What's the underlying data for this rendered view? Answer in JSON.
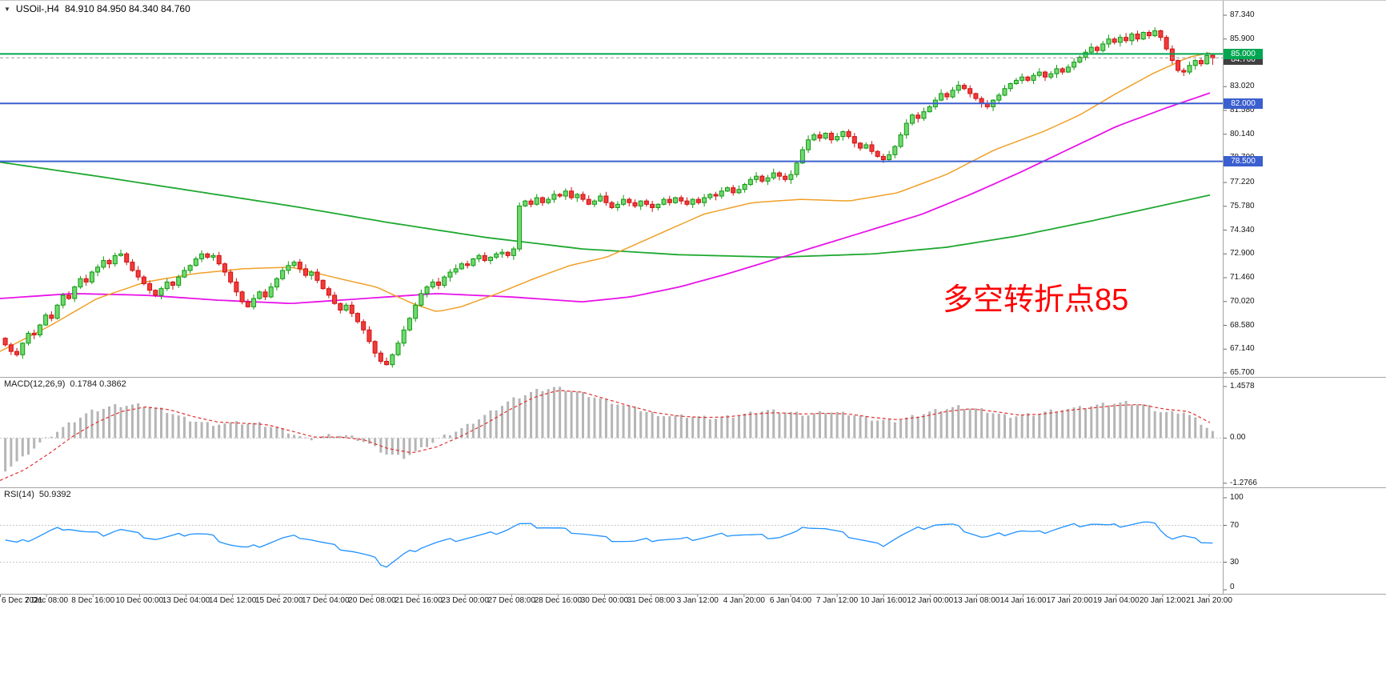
{
  "window": {
    "title_symbol": "USOil-,H4",
    "title_ohlc": "84.910 84.950 84.340 84.760"
  },
  "icons": {
    "dropdown": "▼"
  },
  "annotation": {
    "text": "多空转折点85",
    "color": "#FF0000"
  },
  "panels": {
    "macd": {
      "name": "MACD(12,26,9)",
      "values": "0.1784 0.3862",
      "axis": [
        "1.4578",
        "0.00",
        "-1.2766"
      ]
    },
    "rsi": {
      "name": "RSI(14)",
      "values": "50.9392",
      "axis": [
        "100",
        "70",
        "30",
        "0"
      ]
    }
  },
  "price_axis": [
    "87.340",
    "85.900",
    "84.460",
    "83.020",
    "81.580",
    "80.140",
    "78.700",
    "77.220",
    "75.780",
    "74.340",
    "72.900",
    "71.460",
    "70.020",
    "68.580",
    "67.140",
    "65.700"
  ],
  "time_axis": [
    "6 Dec 2021",
    "7 Dec 08:00",
    "8 Dec 16:00",
    "10 Dec 00:00",
    "13 Dec 04:00",
    "14 Dec 12:00",
    "15 Dec 20:00",
    "17 Dec 04:00",
    "20 Dec 08:00",
    "21 Dec 16:00",
    "23 Dec 00:00",
    "27 Dec 08:00",
    "28 Dec 16:00",
    "30 Dec 00:00",
    "31 Dec 08:00",
    "3 Jan 12:00",
    "4 Jan 20:00",
    "6 Jan 04:00",
    "7 Jan 12:00",
    "10 Jan 16:00",
    "12 Jan 00:00",
    "13 Jan 08:00",
    "14 Jan 16:00",
    "17 Jan 20:00",
    "19 Jan 04:00",
    "20 Jan 12:00",
    "21 Jan 20:00"
  ],
  "hlines": [
    {
      "price": 85.0,
      "label": "85.000",
      "color": "#00A651"
    },
    {
      "price": 82.0,
      "label": "82.000",
      "color": "#3A5FCF"
    },
    {
      "price": 78.5,
      "label": "78.500",
      "color": "#3A5FCF"
    }
  ],
  "current_price": {
    "price": 84.76,
    "label": "84.760"
  },
  "colors": {
    "bull_fill": "#6FD96F",
    "bull_stroke": "#129612",
    "bear_fill": "#F23B3B",
    "bear_stroke": "#CE1010",
    "ma_slow": "#1FA831",
    "ma_mid": "#E813E8",
    "ma_fast": "#F0A028",
    "macd_hist": "#B5B5B5",
    "macd_signal": "#E03030",
    "rsi_line": "#1E90FF",
    "badge_current": "#404040",
    "level_dash": "#C8C8C8",
    "current_line": "#9A9A9A"
  },
  "chart_data": {
    "type": "candlestick",
    "symbol": "USOil-",
    "timeframe": "H4",
    "price_range": [
      65.7,
      87.34
    ],
    "last_bar": {
      "open": 84.91,
      "high": 84.95,
      "low": 84.34,
      "close": 84.76
    },
    "closes": [
      67.4,
      67.0,
      66.8,
      67.5,
      68.1,
      68.0,
      68.6,
      69.2,
      69.0,
      69.8,
      70.4,
      70.2,
      70.9,
      71.4,
      71.2,
      71.8,
      72.1,
      72.5,
      72.3,
      72.8,
      72.9,
      72.4,
      71.9,
      71.5,
      71.1,
      70.7,
      70.4,
      70.8,
      71.2,
      71.0,
      71.5,
      71.9,
      72.2,
      72.6,
      72.9,
      72.7,
      72.8,
      72.3,
      71.8,
      71.2,
      70.6,
      70.0,
      69.7,
      70.2,
      70.6,
      70.3,
      70.9,
      71.4,
      71.9,
      72.2,
      72.4,
      72.0,
      71.6,
      71.8,
      71.3,
      70.8,
      70.4,
      69.9,
      69.5,
      69.8,
      69.3,
      68.8,
      68.3,
      67.6,
      66.9,
      66.4,
      66.2,
      66.8,
      67.5,
      68.3,
      69.0,
      69.8,
      70.5,
      70.9,
      71.2,
      71.0,
      71.5,
      71.8,
      72.0,
      72.3,
      72.2,
      72.6,
      72.8,
      72.5,
      72.7,
      72.9,
      73.0,
      72.8,
      73.2,
      75.8,
      76.1,
      75.9,
      76.3,
      76.0,
      76.2,
      76.5,
      76.4,
      76.7,
      76.3,
      76.5,
      76.2,
      75.9,
      76.1,
      76.4,
      76.0,
      75.7,
      75.9,
      76.2,
      76.0,
      75.8,
      76.1,
      75.9,
      75.7,
      75.9,
      76.2,
      76.0,
      76.3,
      76.1,
      75.9,
      76.2,
      76.0,
      76.3,
      76.5,
      76.4,
      76.7,
      76.9,
      76.6,
      76.8,
      77.1,
      77.4,
      77.6,
      77.3,
      77.5,
      77.8,
      77.6,
      77.4,
      77.7,
      78.4,
      79.2,
      79.8,
      80.1,
      79.9,
      80.2,
      79.8,
      80.0,
      80.3,
      80.0,
      79.6,
      79.3,
      79.5,
      79.1,
      78.8,
      78.6,
      78.9,
      79.4,
      80.1,
      80.8,
      81.3,
      81.1,
      81.5,
      81.8,
      82.2,
      82.6,
      82.4,
      82.8,
      83.1,
      82.9,
      82.6,
      82.3,
      82.0,
      81.8,
      82.2,
      82.5,
      82.9,
      83.2,
      83.4,
      83.6,
      83.4,
      83.7,
      83.9,
      83.6,
      83.8,
      84.1,
      83.9,
      84.2,
      84.5,
      84.8,
      85.1,
      85.4,
      85.2,
      85.6,
      85.9,
      85.7,
      86.0,
      85.8,
      86.2,
      85.9,
      86.3,
      86.1,
      86.4,
      86.0,
      85.3,
      84.6,
      84.0,
      83.9,
      84.3,
      84.6,
      84.4,
      84.9,
      84.76
    ],
    "ma_slow_green": [
      [
        0,
        78.45
      ],
      [
        0.08,
        77.6
      ],
      [
        0.16,
        76.7
      ],
      [
        0.24,
        75.8
      ],
      [
        0.32,
        74.8
      ],
      [
        0.4,
        73.9
      ],
      [
        0.48,
        73.2
      ],
      [
        0.56,
        72.85
      ],
      [
        0.64,
        72.7
      ],
      [
        0.72,
        72.9
      ],
      [
        0.78,
        73.3
      ],
      [
        0.84,
        74.0
      ],
      [
        0.9,
        74.9
      ],
      [
        0.95,
        75.7
      ],
      [
        1,
        76.5
      ]
    ],
    "ma_mid_magenta": [
      [
        0,
        70.2
      ],
      [
        0.06,
        70.5
      ],
      [
        0.12,
        70.4
      ],
      [
        0.18,
        70.1
      ],
      [
        0.24,
        69.9
      ],
      [
        0.3,
        70.2
      ],
      [
        0.36,
        70.5
      ],
      [
        0.42,
        70.3
      ],
      [
        0.48,
        70.0
      ],
      [
        0.52,
        70.3
      ],
      [
        0.56,
        70.9
      ],
      [
        0.6,
        71.7
      ],
      [
        0.64,
        72.6
      ],
      [
        0.68,
        73.5
      ],
      [
        0.72,
        74.4
      ],
      [
        0.76,
        75.3
      ],
      [
        0.8,
        76.5
      ],
      [
        0.84,
        77.8
      ],
      [
        0.88,
        79.2
      ],
      [
        0.92,
        80.6
      ],
      [
        0.96,
        81.7
      ],
      [
        1,
        82.7
      ]
    ],
    "ma_fast_orange": [
      [
        0,
        67.0
      ],
      [
        0.04,
        68.5
      ],
      [
        0.08,
        70.2
      ],
      [
        0.12,
        71.2
      ],
      [
        0.16,
        71.7
      ],
      [
        0.2,
        72.0
      ],
      [
        0.24,
        72.1
      ],
      [
        0.28,
        71.4
      ],
      [
        0.31,
        70.9
      ],
      [
        0.34,
        69.9
      ],
      [
        0.36,
        69.4
      ],
      [
        0.38,
        69.7
      ],
      [
        0.41,
        70.5
      ],
      [
        0.44,
        71.4
      ],
      [
        0.47,
        72.2
      ],
      [
        0.5,
        72.7
      ],
      [
        0.54,
        74.0
      ],
      [
        0.58,
        75.3
      ],
      [
        0.62,
        76.0
      ],
      [
        0.66,
        76.2
      ],
      [
        0.7,
        76.1
      ],
      [
        0.74,
        76.6
      ],
      [
        0.78,
        77.7
      ],
      [
        0.82,
        79.2
      ],
      [
        0.86,
        80.3
      ],
      [
        0.89,
        81.3
      ],
      [
        0.92,
        82.6
      ],
      [
        0.95,
        83.8
      ],
      [
        0.98,
        84.8
      ],
      [
        1,
        85.1
      ]
    ],
    "macd_range": [
      -1.2766,
      1.4578
    ],
    "macd_line": [
      [
        0,
        -0.9
      ],
      [
        0.015,
        -0.55
      ],
      [
        0.03,
        -0.1
      ],
      [
        0.05,
        0.35
      ],
      [
        0.07,
        0.75
      ],
      [
        0.09,
        0.92
      ],
      [
        0.11,
        0.95
      ],
      [
        0.13,
        0.82
      ],
      [
        0.15,
        0.55
      ],
      [
        0.17,
        0.4
      ],
      [
        0.19,
        0.42
      ],
      [
        0.21,
        0.4
      ],
      [
        0.23,
        0.22
      ],
      [
        0.25,
        -0.05
      ],
      [
        0.27,
        0.08
      ],
      [
        0.285,
        0.05
      ],
      [
        0.3,
        -0.15
      ],
      [
        0.315,
        -0.45
      ],
      [
        0.33,
        -0.55
      ],
      [
        0.345,
        -0.3
      ],
      [
        0.36,
        0.0
      ],
      [
        0.38,
        0.3
      ],
      [
        0.4,
        0.7
      ],
      [
        0.42,
        1.1
      ],
      [
        0.44,
        1.35
      ],
      [
        0.455,
        1.44
      ],
      [
        0.47,
        1.35
      ],
      [
        0.49,
        1.15
      ],
      [
        0.51,
        0.95
      ],
      [
        0.53,
        0.75
      ],
      [
        0.55,
        0.62
      ],
      [
        0.57,
        0.6
      ],
      [
        0.59,
        0.55
      ],
      [
        0.61,
        0.65
      ],
      [
        0.63,
        0.78
      ],
      [
        0.65,
        0.72
      ],
      [
        0.665,
        0.65
      ],
      [
        0.68,
        0.75
      ],
      [
        0.7,
        0.68
      ],
      [
        0.72,
        0.52
      ],
      [
        0.735,
        0.48
      ],
      [
        0.75,
        0.6
      ],
      [
        0.77,
        0.78
      ],
      [
        0.79,
        0.9
      ],
      [
        0.81,
        0.8
      ],
      [
        0.83,
        0.62
      ],
      [
        0.85,
        0.68
      ],
      [
        0.87,
        0.8
      ],
      [
        0.89,
        0.85
      ],
      [
        0.91,
        0.95
      ],
      [
        0.93,
        1.0
      ],
      [
        0.945,
        0.92
      ],
      [
        0.955,
        0.75
      ],
      [
        0.965,
        0.7
      ],
      [
        0.975,
        0.75
      ],
      [
        0.985,
        0.55
      ],
      [
        1,
        0.18
      ]
    ],
    "macd_signal": [
      [
        0,
        -1.2
      ],
      [
        0.02,
        -0.9
      ],
      [
        0.04,
        -0.45
      ],
      [
        0.06,
        0.05
      ],
      [
        0.08,
        0.45
      ],
      [
        0.1,
        0.75
      ],
      [
        0.12,
        0.88
      ],
      [
        0.14,
        0.8
      ],
      [
        0.16,
        0.6
      ],
      [
        0.18,
        0.45
      ],
      [
        0.2,
        0.42
      ],
      [
        0.22,
        0.38
      ],
      [
        0.24,
        0.2
      ],
      [
        0.26,
        0.02
      ],
      [
        0.28,
        0.03
      ],
      [
        0.3,
        -0.05
      ],
      [
        0.32,
        -0.3
      ],
      [
        0.34,
        -0.42
      ],
      [
        0.36,
        -0.25
      ],
      [
        0.38,
        0.05
      ],
      [
        0.4,
        0.4
      ],
      [
        0.42,
        0.8
      ],
      [
        0.44,
        1.15
      ],
      [
        0.46,
        1.35
      ],
      [
        0.48,
        1.3
      ],
      [
        0.5,
        1.1
      ],
      [
        0.52,
        0.9
      ],
      [
        0.54,
        0.72
      ],
      [
        0.56,
        0.62
      ],
      [
        0.58,
        0.58
      ],
      [
        0.6,
        0.6
      ],
      [
        0.62,
        0.68
      ],
      [
        0.64,
        0.72
      ],
      [
        0.66,
        0.68
      ],
      [
        0.68,
        0.7
      ],
      [
        0.7,
        0.68
      ],
      [
        0.72,
        0.58
      ],
      [
        0.74,
        0.52
      ],
      [
        0.76,
        0.6
      ],
      [
        0.78,
        0.75
      ],
      [
        0.8,
        0.83
      ],
      [
        0.82,
        0.75
      ],
      [
        0.84,
        0.65
      ],
      [
        0.86,
        0.68
      ],
      [
        0.88,
        0.78
      ],
      [
        0.9,
        0.85
      ],
      [
        0.92,
        0.92
      ],
      [
        0.94,
        0.95
      ],
      [
        0.96,
        0.82
      ],
      [
        0.98,
        0.75
      ],
      [
        1,
        0.39
      ]
    ],
    "rsi_levels": [
      70,
      30
    ],
    "rsi_range": [
      0,
      100
    ],
    "rsi_line": [
      [
        0,
        54
      ],
      [
        0.01,
        50
      ],
      [
        0.025,
        57
      ],
      [
        0.04,
        65
      ],
      [
        0.05,
        68
      ],
      [
        0.065,
        63
      ],
      [
        0.08,
        60
      ],
      [
        0.095,
        66
      ],
      [
        0.11,
        60
      ],
      [
        0.125,
        55
      ],
      [
        0.14,
        58
      ],
      [
        0.155,
        62
      ],
      [
        0.17,
        59
      ],
      [
        0.185,
        50
      ],
      [
        0.2,
        45
      ],
      [
        0.215,
        50
      ],
      [
        0.23,
        56
      ],
      [
        0.245,
        58
      ],
      [
        0.26,
        52
      ],
      [
        0.275,
        46
      ],
      [
        0.29,
        41
      ],
      [
        0.305,
        34
      ],
      [
        0.315,
        25
      ],
      [
        0.33,
        38
      ],
      [
        0.345,
        47
      ],
      [
        0.36,
        52
      ],
      [
        0.38,
        56
      ],
      [
        0.4,
        60
      ],
      [
        0.415,
        65
      ],
      [
        0.425,
        71
      ],
      [
        0.44,
        69
      ],
      [
        0.46,
        66
      ],
      [
        0.48,
        61
      ],
      [
        0.5,
        55
      ],
      [
        0.52,
        52
      ],
      [
        0.54,
        55
      ],
      [
        0.56,
        54
      ],
      [
        0.58,
        57
      ],
      [
        0.6,
        61
      ],
      [
        0.62,
        59
      ],
      [
        0.64,
        57
      ],
      [
        0.655,
        62
      ],
      [
        0.665,
        69
      ],
      [
        0.68,
        66
      ],
      [
        0.7,
        58
      ],
      [
        0.715,
        52
      ],
      [
        0.725,
        48
      ],
      [
        0.74,
        58
      ],
      [
        0.755,
        66
      ],
      [
        0.77,
        71
      ],
      [
        0.785,
        70
      ],
      [
        0.8,
        62
      ],
      [
        0.81,
        56
      ],
      [
        0.825,
        60
      ],
      [
        0.84,
        64
      ],
      [
        0.855,
        61
      ],
      [
        0.87,
        66
      ],
      [
        0.885,
        70
      ],
      [
        0.9,
        72
      ],
      [
        0.915,
        69
      ],
      [
        0.93,
        71
      ],
      [
        0.945,
        73
      ],
      [
        0.955,
        69
      ],
      [
        0.965,
        55
      ],
      [
        0.975,
        58
      ],
      [
        0.985,
        54
      ],
      [
        1,
        51
      ]
    ]
  }
}
